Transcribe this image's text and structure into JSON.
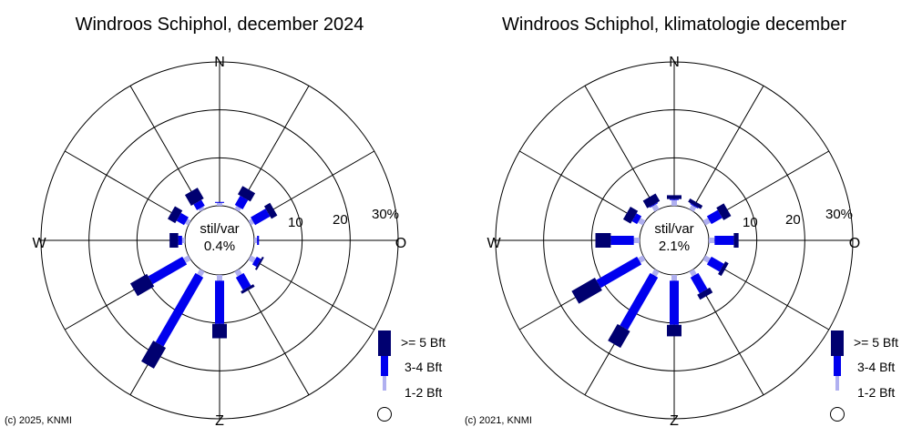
{
  "colors": {
    "bft_1_2": "#b0b0f0",
    "bft_3_4": "#0000ee",
    "bft_5_plus": "#000070",
    "axis": "#000000",
    "background": "#ffffff"
  },
  "legend": {
    "items": [
      {
        "label": ">= 5 Bft"
      },
      {
        "label": "3-4 Bft"
      },
      {
        "label": "1-2 Bft"
      }
    ]
  },
  "chart_data": [
    {
      "type": "windrose",
      "title": "Windroos Schiphol, december 2024",
      "copyright": "(c) 2025, KNMI",
      "calm_label": "stil/var",
      "calm_value": "0.4%",
      "compass_labels": {
        "N": "N",
        "O": "O",
        "Z": "Z",
        "W": "W"
      },
      "ring_labels": [
        "10",
        "20",
        "30%"
      ],
      "rmax": 30,
      "directions_deg": [
        0,
        30,
        60,
        90,
        120,
        150,
        180,
        210,
        240,
        270,
        300,
        330
      ],
      "series": [
        {
          "name": "1-2 Bft",
          "values": [
            0.6,
            0.8,
            0.8,
            0.6,
            1.2,
            1.2,
            1.2,
            1.2,
            1.2,
            0.6,
            0.8,
            0.6
          ]
        },
        {
          "name": "3-4 Bft",
          "values": [
            0.2,
            2.2,
            3.6,
            0.4,
            1.0,
            3.0,
            9.0,
            16.6,
            8.2,
            0.8,
            1.8,
            1.4
          ]
        },
        {
          "name": ">= 5 Bft",
          "values": [
            0.0,
            2.0,
            1.4,
            0.0,
            0.4,
            0.6,
            3.0,
            5.0,
            4.0,
            1.8,
            1.8,
            2.6
          ]
        }
      ]
    },
    {
      "type": "windrose",
      "title": "Windroos Schiphol, klimatologie december",
      "copyright": "(c) 2021, KNMI",
      "calm_label": "stil/var",
      "calm_value": "2.1%",
      "compass_labels": {
        "N": "N",
        "O": "O",
        "Z": "Z",
        "W": "W"
      },
      "ring_labels": [
        "10",
        "20",
        "30%"
      ],
      "rmax": 30,
      "directions_deg": [
        0,
        30,
        60,
        90,
        120,
        150,
        180,
        210,
        240,
        270,
        300,
        330
      ],
      "series": [
        {
          "name": "1-2 Bft",
          "values": [
            1.2,
            1.0,
            1.2,
            1.2,
            1.2,
            1.2,
            1.2,
            1.2,
            1.2,
            1.2,
            1.2,
            1.2
          ]
        },
        {
          "name": "3-4 Bft",
          "values": [
            0.2,
            0.2,
            2.6,
            4.0,
            3.0,
            3.8,
            9.2,
            12.6,
            9.8,
            4.8,
            1.2,
            0.2
          ]
        },
        {
          "name": ">= 5 Bft",
          "values": [
            0.8,
            0.8,
            1.8,
            1.0,
            0.8,
            1.2,
            2.4,
            4.0,
            5.6,
            3.2,
            1.8,
            1.8
          ]
        }
      ]
    }
  ]
}
